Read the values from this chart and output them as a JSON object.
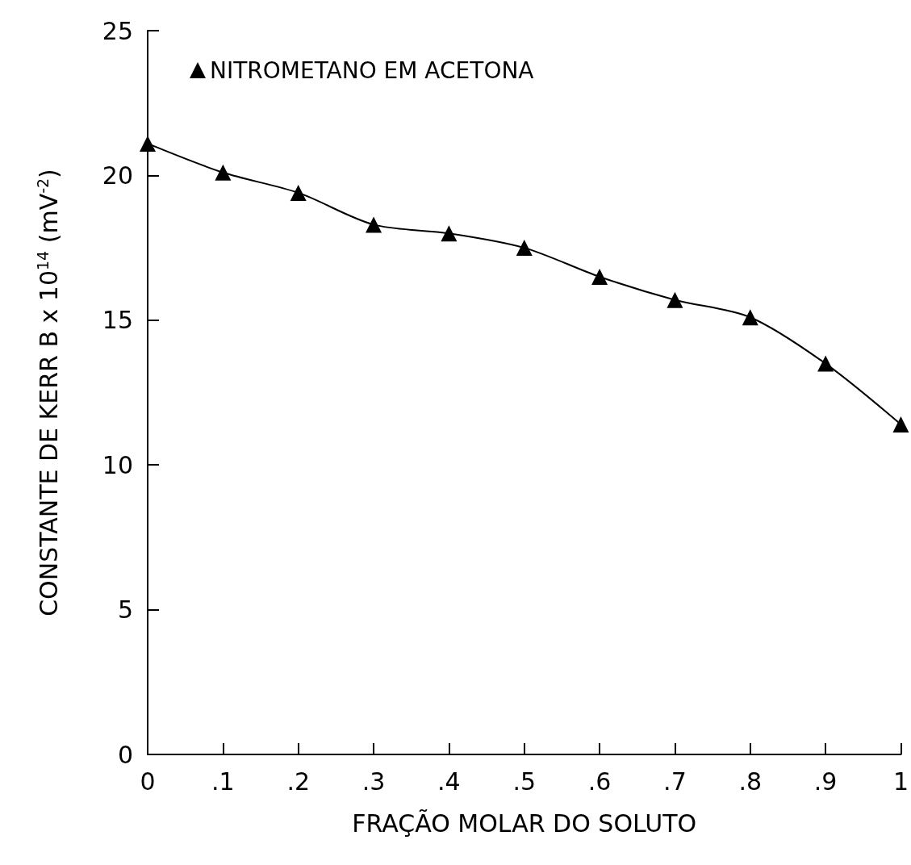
{
  "chart_data": {
    "type": "line",
    "xlabel": "FRAÇÃO MOLAR DO SOLUTO",
    "ylabel": "CONSTANTE DE KERR B x 10$^{14}$ (mV$^{-2}$)",
    "xlim": [
      0,
      1
    ],
    "xticks": [
      0,
      {
        "value": 0.1,
        "label": ".1"
      },
      {
        "value": 0.2,
        "label": ".2"
      },
      {
        "value": 0.3,
        "label": ".3"
      },
      {
        "value": 0.4,
        "label": ".4"
      },
      {
        "value": 0.5,
        "label": ".5"
      },
      {
        "value": 0.6,
        "label": ".6"
      },
      {
        "value": 0.7,
        "label": ".7"
      },
      {
        "value": 0.8,
        "label": ".8"
      },
      {
        "value": 0.9,
        "label": ".9"
      },
      1
    ],
    "ylim": [
      0,
      25
    ],
    "yticks": [
      0,
      5,
      10,
      15,
      20,
      25
    ],
    "grid": false,
    "legend": "top left",
    "marker": "triangle",
    "line_style": "solid",
    "series": [
      {
        "name": "NITROMETANO EM ACETONA",
        "color": "#000000",
        "x": [
          0,
          0.1,
          0.2,
          0.3,
          0.4,
          0.5,
          0.6,
          0.7,
          0.8,
          0.9,
          1
        ],
        "values": [
          21.1,
          20.1,
          19.4,
          18.3,
          18.0,
          17.5,
          16.5,
          15.7,
          15.1,
          13.5,
          11.4
        ]
      }
    ]
  }
}
